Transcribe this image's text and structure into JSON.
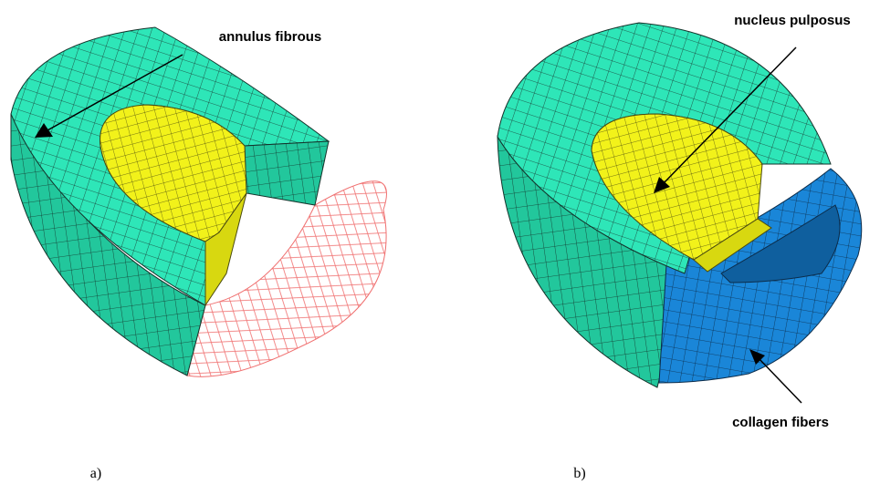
{
  "labels": {
    "annulus": "annulus fibrous",
    "nucleus": "nucleus pulposus",
    "collagen": "collagen fibers"
  },
  "panels": [
    "a)",
    "b)"
  ]
}
